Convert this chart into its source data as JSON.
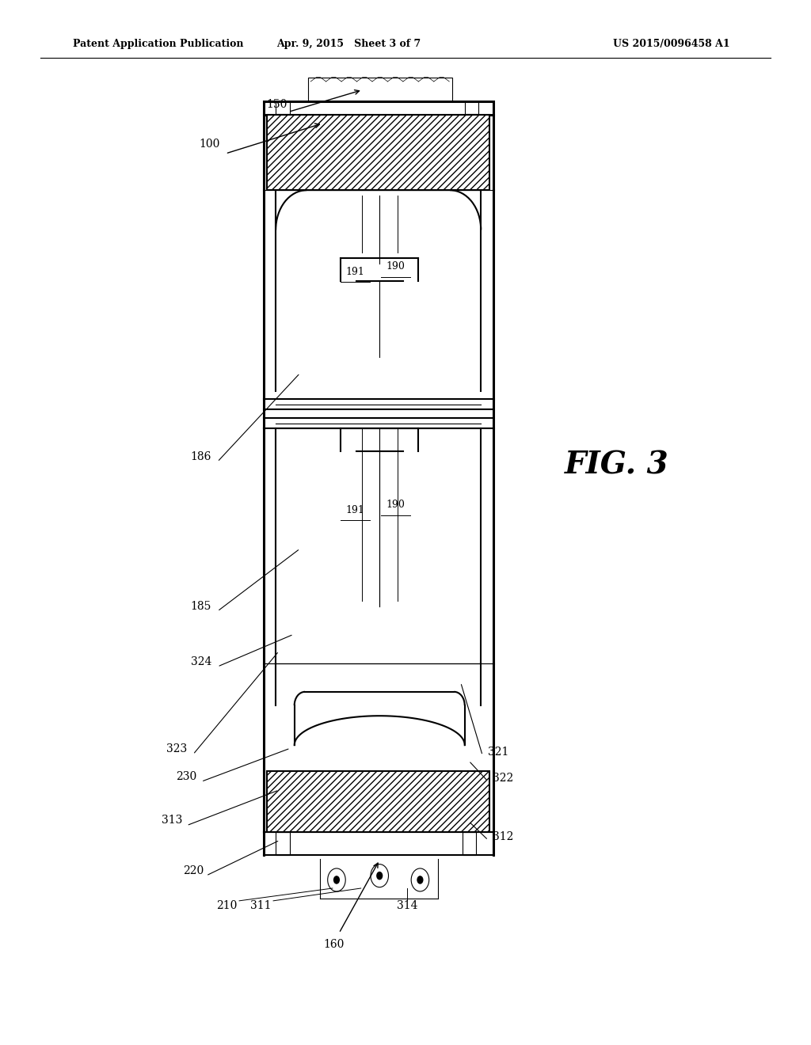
{
  "bg_color": "#ffffff",
  "line_color": "#000000",
  "header_left": "Patent Application Publication",
  "header_mid": "Apr. 9, 2015   Sheet 3 of 7",
  "header_right": "US 2015/0096458 A1",
  "fig_label": "FIG. 3"
}
